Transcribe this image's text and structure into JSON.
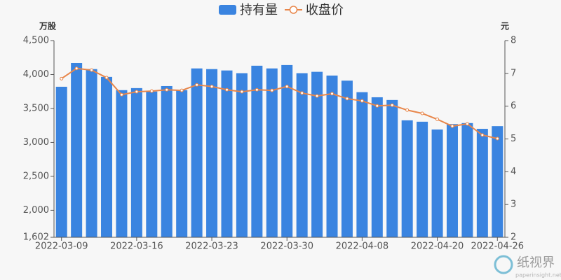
{
  "chart_data": {
    "type": "bar_line",
    "legend": "top",
    "y_unit": "万股",
    "y2_unit": "元",
    "categories": [
      "2022-03-09",
      null,
      null,
      null,
      null,
      "2022-03-16",
      null,
      null,
      null,
      null,
      "2022-03-23",
      null,
      null,
      null,
      null,
      "2022-03-30",
      null,
      null,
      null,
      null,
      "2022-04-08",
      null,
      null,
      null,
      null,
      "2022-04-20",
      null,
      null,
      null,
      "2022-04-26"
    ],
    "series": [
      {
        "name": "持有量",
        "color": "#3a84e0",
        "type": "bar",
        "axis": "y",
        "values": [
          3820,
          4170,
          4080,
          3965,
          3770,
          3800,
          3750,
          3830,
          3770,
          4090,
          4080,
          4060,
          4020,
          4130,
          4090,
          4140,
          4020,
          4040,
          3985,
          3910,
          3740,
          3665,
          3625,
          3325,
          3305,
          3190,
          3270,
          3285,
          3200,
          3240
        ]
      },
      {
        "name": "收盘价",
        "color": "#e8864a",
        "type": "line",
        "axis": "y2",
        "values": [
          6.84,
          7.15,
          7.1,
          6.87,
          6.35,
          6.44,
          6.46,
          6.5,
          6.48,
          6.65,
          6.6,
          6.5,
          6.44,
          6.5,
          6.48,
          6.6,
          6.4,
          6.31,
          6.38,
          6.23,
          6.16,
          6.01,
          6.03,
          5.88,
          5.78,
          5.6,
          5.39,
          5.46,
          5.12,
          5.01
        ]
      }
    ],
    "ylim": [
      1602,
      4500
    ],
    "yticks": [
      {
        "value": 1602,
        "label": "1,602"
      },
      {
        "value": 2000,
        "label": "2,000"
      },
      {
        "value": 2500,
        "label": "2,500"
      },
      {
        "value": 3000,
        "label": "3,000"
      },
      {
        "value": 3500,
        "label": "3,500"
      },
      {
        "value": 4000,
        "label": "4,000"
      },
      {
        "value": 4500,
        "label": "4,500"
      }
    ],
    "y2lim": [
      2,
      8
    ],
    "y2ticks": [
      2,
      3,
      4,
      5,
      6,
      7,
      8
    ]
  },
  "watermark": {
    "text": "纸视界",
    "url": "paperinsight.net"
  }
}
